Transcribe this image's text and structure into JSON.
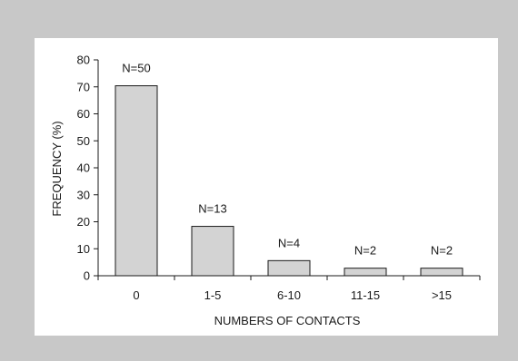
{
  "chart_data": {
    "type": "bar",
    "categories": [
      "0",
      "1-5",
      "6-10",
      "11-15",
      ">15"
    ],
    "values": [
      70.4,
      18.3,
      5.6,
      2.8,
      2.8
    ],
    "data_labels": [
      "N=50",
      "N=13",
      "N=4",
      "N=2",
      "N=2"
    ],
    "title": "",
    "xlabel": "NUMBERS OF CONTACTS",
    "ylabel": "FREQUENCY (%)",
    "ylim": [
      0,
      80
    ],
    "yticks": [
      0,
      10,
      20,
      30,
      40,
      50,
      60,
      70,
      80
    ],
    "grid": false,
    "legend": "none",
    "colors": {
      "bar_fill": "#d3d3d3",
      "bar_stroke": "#1a1a1a",
      "axis": "#1a1a1a"
    }
  }
}
